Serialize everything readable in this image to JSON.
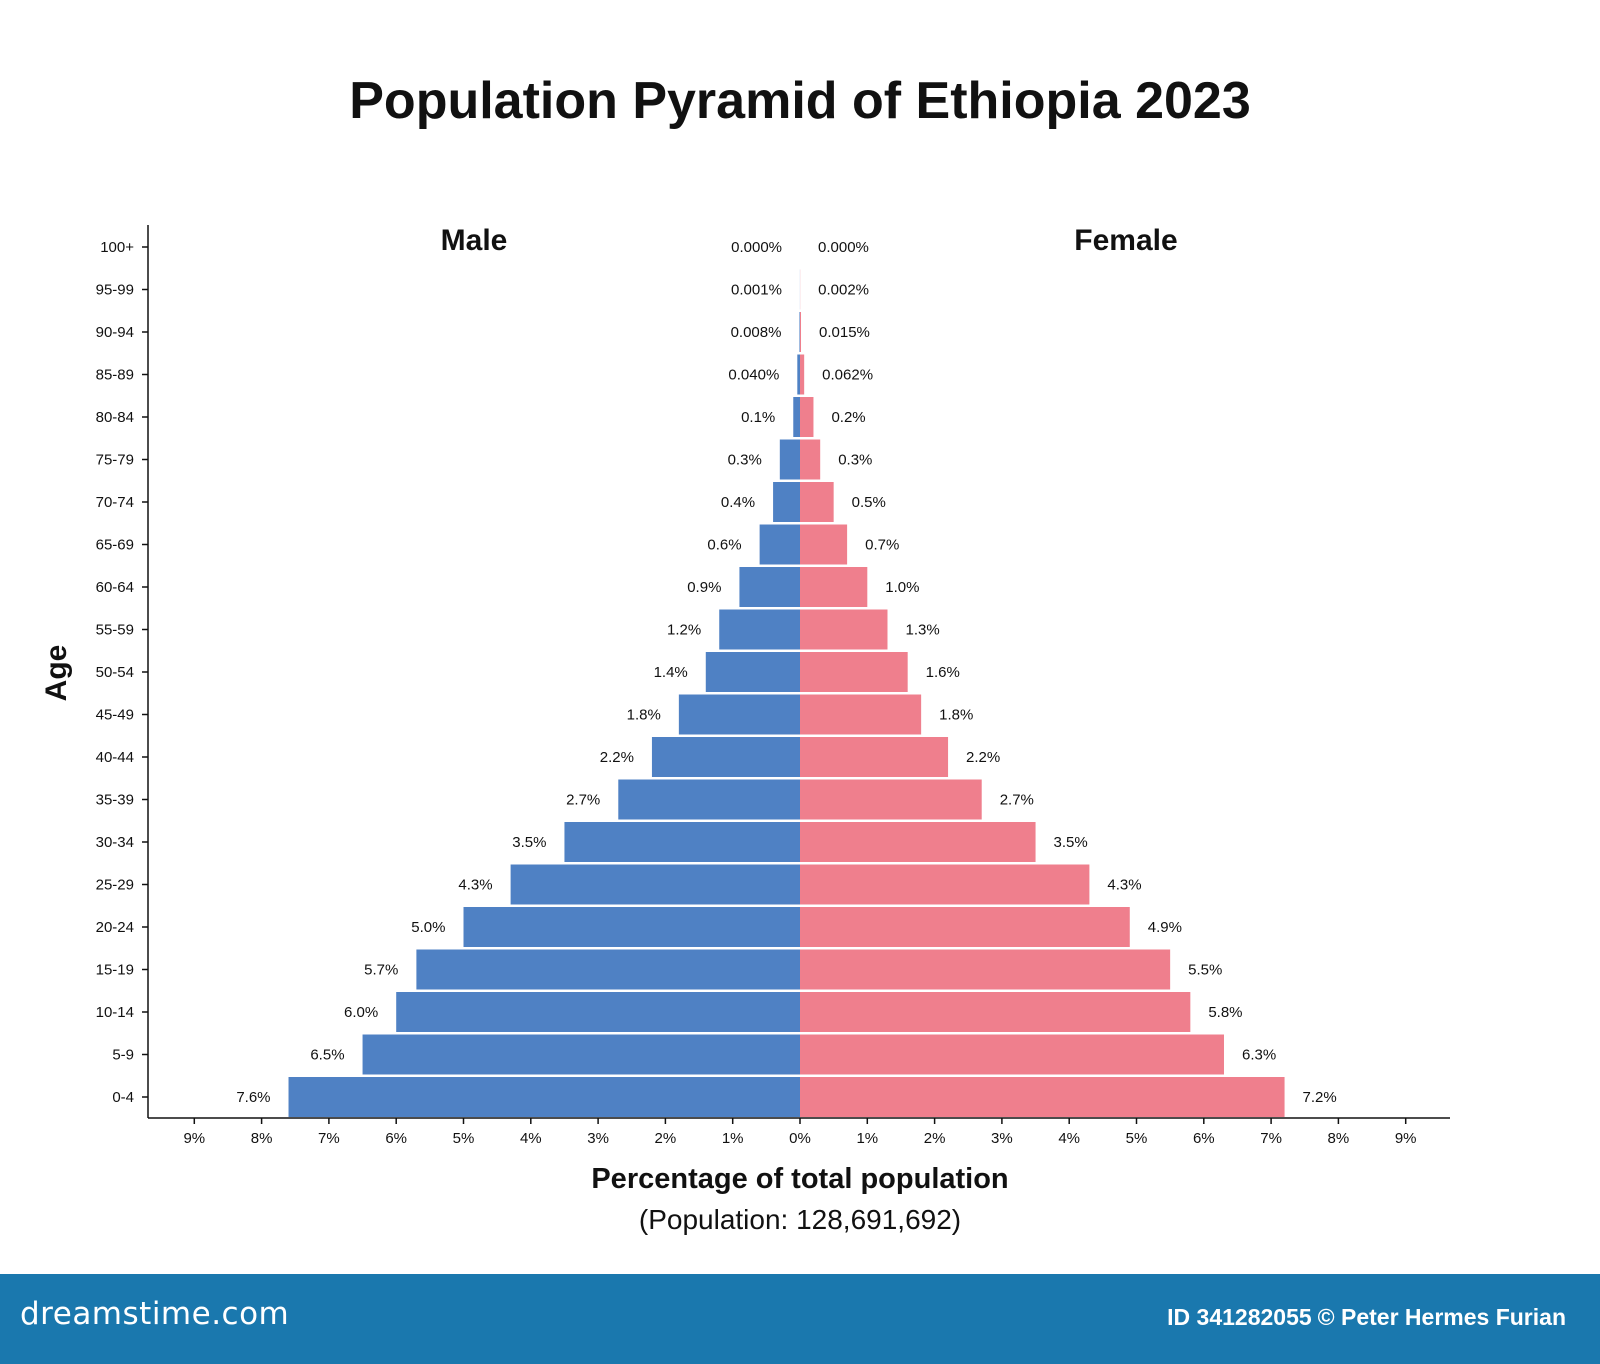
{
  "chart_data": {
    "type": "bar",
    "title": "Population Pyramid of Ethiopia 2023",
    "xlabel": "Percentage of total population",
    "xlabel_sub": "(Population: 128,691,692)",
    "ylabel": "Age",
    "categories": [
      "100+",
      "95-99",
      "90-94",
      "85-89",
      "80-84",
      "75-79",
      "70-74",
      "65-69",
      "60-64",
      "55-59",
      "50-54",
      "45-49",
      "40-44",
      "35-39",
      "30-34",
      "25-29",
      "20-24",
      "15-19",
      "10-14",
      "5-9",
      "0-4"
    ],
    "series": [
      {
        "name": "Male",
        "values": [
          0.0,
          0.001,
          0.008,
          0.04,
          0.1,
          0.3,
          0.4,
          0.6,
          0.9,
          1.2,
          1.4,
          1.8,
          2.2,
          2.7,
          3.5,
          4.3,
          5.0,
          5.7,
          6.0,
          6.5,
          7.6
        ],
        "labels": [
          "0.000%",
          "0.001%",
          "0.008%",
          "0.040%",
          "0.1%",
          "0.3%",
          "0.4%",
          "0.6%",
          "0.9%",
          "1.2%",
          "1.4%",
          "1.8%",
          "2.2%",
          "2.7%",
          "3.5%",
          "4.3%",
          "5.0%",
          "5.7%",
          "6.0%",
          "6.5%",
          "7.6%"
        ],
        "color": "#4f81c4"
      },
      {
        "name": "Female",
        "values": [
          0.0,
          0.002,
          0.015,
          0.062,
          0.2,
          0.3,
          0.5,
          0.7,
          1.0,
          1.3,
          1.6,
          1.8,
          2.2,
          2.7,
          3.5,
          4.3,
          4.9,
          5.5,
          5.8,
          6.3,
          7.2
        ],
        "labels": [
          "0.000%",
          "0.002%",
          "0.015%",
          "0.062%",
          "0.2%",
          "0.3%",
          "0.5%",
          "0.7%",
          "1.0%",
          "1.3%",
          "1.6%",
          "1.8%",
          "2.2%",
          "2.7%",
          "3.5%",
          "4.3%",
          "4.9%",
          "5.5%",
          "5.8%",
          "6.3%",
          "7.2%"
        ],
        "color": "#ef7f8d"
      }
    ],
    "xlim": [
      -9,
      9
    ],
    "xticks": [
      "9%",
      "8%",
      "7%",
      "6%",
      "5%",
      "4%",
      "3%",
      "2%",
      "1%",
      "0%",
      "1%",
      "2%",
      "3%",
      "4%",
      "5%",
      "6%",
      "7%",
      "8%",
      "9%"
    ],
    "grid": false,
    "legend": "series names above bars, top-left and top-right"
  },
  "footer": {
    "logo": "dreamstime.com",
    "credit_id": "ID 341282055",
    "credit_author": "© Peter Hermes Furian"
  }
}
